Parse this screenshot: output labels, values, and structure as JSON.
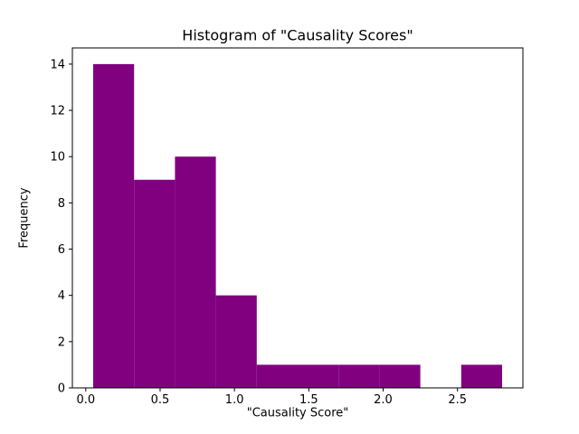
{
  "chart_data": {
    "type": "bar",
    "subtype": "histogram",
    "title": "Histogram of \"Causality Scores\"",
    "xlabel": "\"Causality Score\"",
    "ylabel": "Frequency",
    "bar_color": "#800080",
    "background_color": "#ffffff",
    "spine_color": "#000000",
    "bin_edges": [
      0.05,
      0.325,
      0.6,
      0.875,
      1.15,
      1.425,
      1.7,
      1.975,
      2.25,
      2.525,
      2.8
    ],
    "counts": [
      14,
      9,
      10,
      4,
      1,
      1,
      1,
      1,
      0,
      1
    ],
    "xlim": [
      -0.09,
      2.94
    ],
    "ylim": [
      0,
      14.7
    ],
    "xticks": [
      0.0,
      0.5,
      1.0,
      1.5,
      2.0,
      2.5
    ],
    "xtick_labels": [
      "0.0",
      "0.5",
      "1.0",
      "1.5",
      "2.0",
      "2.5"
    ],
    "yticks": [
      0,
      2,
      4,
      6,
      8,
      10,
      12,
      14
    ],
    "ytick_labels": [
      "0",
      "2",
      "4",
      "6",
      "8",
      "10",
      "12",
      "14"
    ],
    "grid": false,
    "legend": null
  }
}
